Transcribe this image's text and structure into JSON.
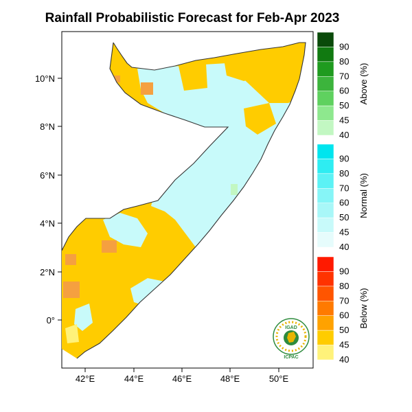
{
  "title": "Rainfall Probabilistic Forecast for Feb-Apr 2023",
  "axes": {
    "lat_labels": [
      "10°N",
      "8°N",
      "6°N",
      "4°N",
      "2°N",
      "0°"
    ],
    "lon_labels": [
      "42°E",
      "44°E",
      "46°E",
      "48°E",
      "50°E"
    ]
  },
  "legend": {
    "above": {
      "label": "Above (%)",
      "levels": [
        "90",
        "80",
        "70",
        "60",
        "50",
        "45",
        "40"
      ],
      "colors": [
        "#0a4a0a",
        "#117a11",
        "#1f9b1f",
        "#3cb43c",
        "#5fd15f",
        "#8ee88e",
        "#c2f7c2"
      ]
    },
    "normal": {
      "label": "Normal (%)",
      "levels": [
        "90",
        "80",
        "70",
        "60",
        "50",
        "45",
        "40"
      ],
      "colors": [
        "#00e5ee",
        "#2eedf2",
        "#5cf2f5",
        "#86f5f7",
        "#a8f7f8",
        "#c8fafa",
        "#e6fcfc"
      ]
    },
    "below": {
      "label": "Below (%)",
      "levels": [
        "90",
        "80",
        "70",
        "60",
        "50",
        "45",
        "40"
      ],
      "colors": [
        "#ff1a00",
        "#ff3300",
        "#ff5500",
        "#ff7a00",
        "#ffa200",
        "#ffcc00",
        "#fff27a"
      ]
    }
  },
  "map_colors": {
    "below_45": "#ffcc00",
    "below_40": "#fff27a",
    "below_50": "#f5a040",
    "normal_40": "#c8fafa",
    "normal_45": "#a8f3f6",
    "above_40": "#c2f7c2",
    "border": "#333333"
  },
  "logo": {
    "top_text": "IGAD",
    "bottom_text": "ICPAC"
  }
}
